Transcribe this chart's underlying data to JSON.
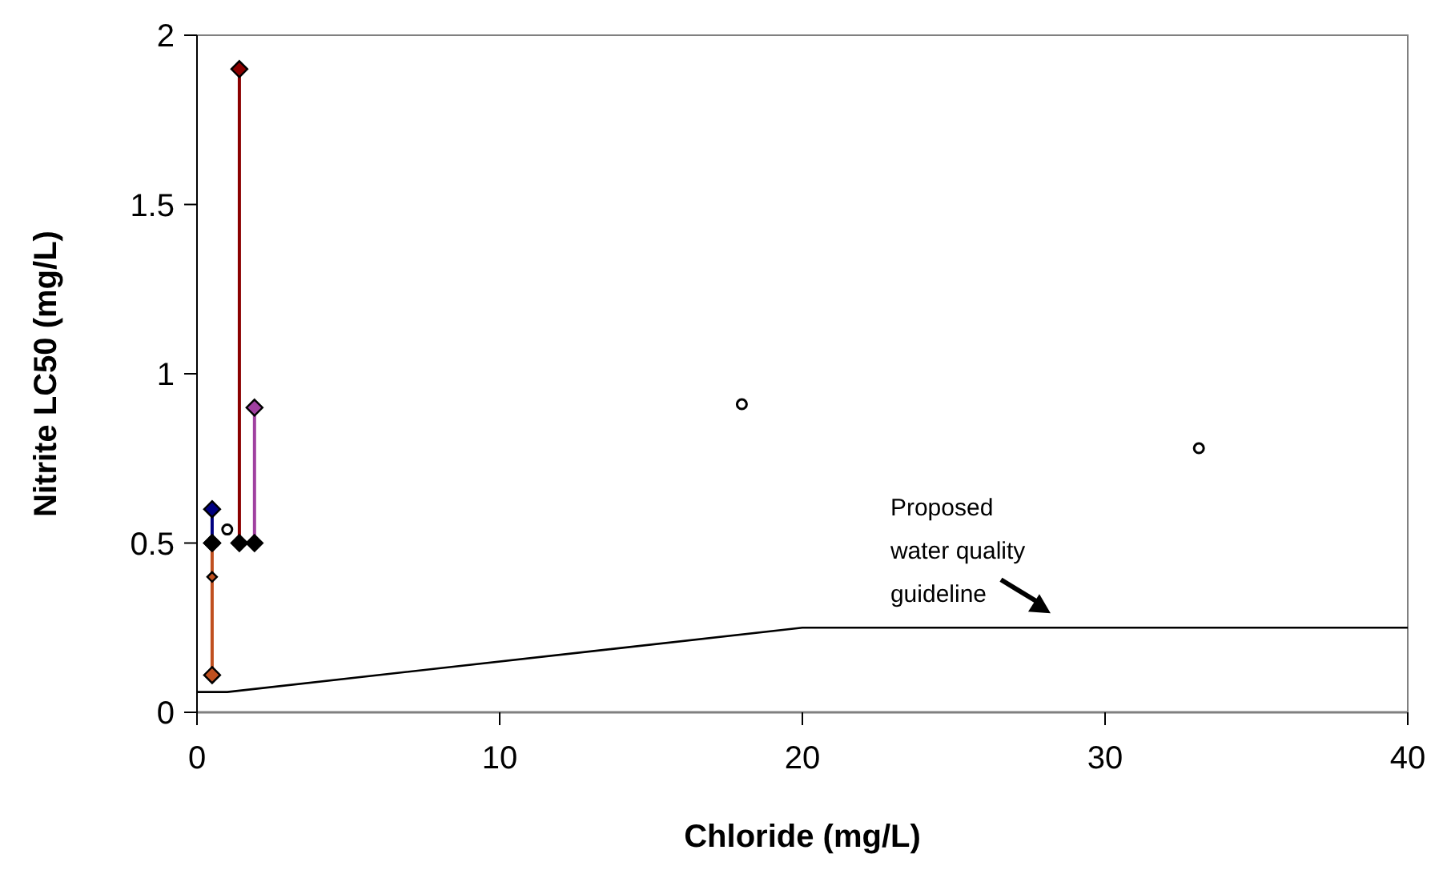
{
  "chart_data": {
    "type": "line",
    "xlabel": "Chloride (mg/L)",
    "ylabel": "Nitrite LC50 (mg/L)",
    "xlim": [
      0,
      40
    ],
    "xticks": [
      0,
      10,
      20,
      30,
      40
    ],
    "ylim": [
      0,
      2
    ],
    "yticks": [
      0,
      0.5,
      1,
      1.5,
      2
    ],
    "grid": false,
    "series": [
      {
        "color": "#000080",
        "marker": "diamond",
        "x": [
          0.5,
          0.5
        ],
        "values": [
          0.5,
          0.6
        ]
      },
      {
        "color": "#c0501f",
        "marker": "diamond",
        "x": [
          0.5,
          0.5,
          0.5
        ],
        "values": [
          0.5,
          0.4,
          0.11
        ]
      },
      {
        "color": "#8b0000",
        "marker": "diamond",
        "x": [
          1.4,
          1.4
        ],
        "values": [
          0.5,
          1.9
        ]
      },
      {
        "color": "#a040a0",
        "marker": "diamond",
        "x": [
          1.9,
          1.9
        ],
        "values": [
          0.5,
          0.9
        ]
      },
      {
        "type": "scatter",
        "color": "#000000",
        "marker": "circle",
        "x": [
          1,
          18,
          33.1
        ],
        "values": [
          0.54,
          0.91,
          0.78
        ]
      },
      {
        "color": "#000000",
        "marker": "none",
        "x": [
          0,
          1,
          20,
          40
        ],
        "values": [
          0.06,
          0.06,
          0.25,
          0.25
        ]
      }
    ],
    "annotations": [
      {
        "text": "Proposed water quality guideline",
        "x": 28.2,
        "y": 0.25
      }
    ]
  }
}
